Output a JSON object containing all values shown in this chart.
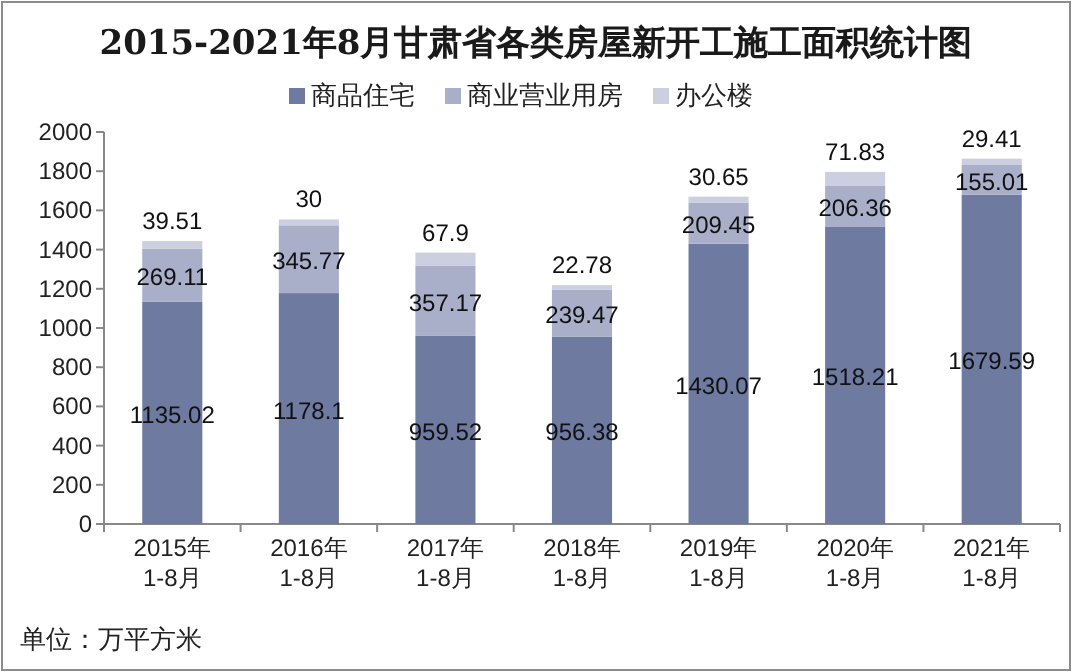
{
  "chart_data": {
    "type": "bar",
    "title": "2015-2021年8月甘肃省各类房屋新开工施工面积统计图",
    "categories": [
      "2015年\n1-8月",
      "2016年\n1-8月",
      "2017年\n1-8月",
      "2018年\n1-8月",
      "2019年\n1-8月",
      "2020年\n1-8月",
      "2021年\n1-8月"
    ],
    "series": [
      {
        "name": "商品住宅",
        "color": "#6e7aa0",
        "values": [
          1135.02,
          1178.1,
          959.52,
          956.38,
          1430.07,
          1518.21,
          1679.59
        ]
      },
      {
        "name": "商业营业用房",
        "color": "#a9afc9",
        "values": [
          269.11,
          345.77,
          357.17,
          239.47,
          209.45,
          206.36,
          155.01
        ]
      },
      {
        "name": "办公楼",
        "color": "#cbcfdf",
        "values": [
          39.51,
          30,
          67.9,
          22.78,
          30.65,
          71.83,
          29.41
        ]
      }
    ],
    "stacked": true,
    "data_labels": true,
    "legend": "top",
    "grid": false,
    "ylim": [
      0,
      2000
    ],
    "yticks": [
      0,
      200,
      400,
      600,
      800,
      1000,
      1200,
      1400,
      1600,
      1800,
      2000
    ],
    "annotations": [
      "单位：万平方米"
    ]
  }
}
